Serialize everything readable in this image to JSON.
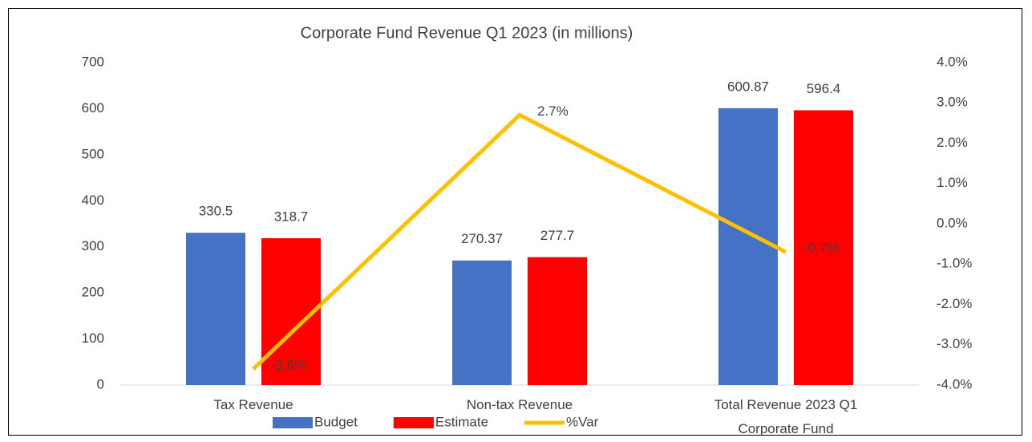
{
  "chart_data": {
    "type": "bar",
    "title": "Corporate Fund Revenue Q1 2023 (in millions)",
    "categories": [
      "Tax Revenue",
      "Non-tax Revenue",
      "Total Revenue 2023 Q1 Corporate Fund"
    ],
    "series": [
      {
        "name": "Budget",
        "color": "#4472c4",
        "values": [
          330.5,
          270.37,
          600.87
        ]
      },
      {
        "name": "Estimate",
        "color": "#ff0000",
        "values": [
          318.7,
          277.7,
          596.4
        ]
      },
      {
        "name": "%Var",
        "color": "#ffc000",
        "type": "line",
        "axis": "y2",
        "values": [
          -3.6,
          2.7,
          -0.7
        ],
        "value_labels": [
          "-3.6%",
          "2.7%",
          "-0.7%"
        ]
      }
    ],
    "ylim": [
      0,
      700
    ],
    "yticks": [
      0,
      100,
      200,
      300,
      400,
      500,
      600,
      700
    ],
    "y2lim": [
      -4,
      4
    ],
    "y2ticks": [
      {
        "value": -4,
        "label": "-4.0%"
      },
      {
        "value": -3,
        "label": "-3.0%"
      },
      {
        "value": -2,
        "label": "-2.0%"
      },
      {
        "value": -1,
        "label": "-1.0%"
      },
      {
        "value": 0,
        "label": "0.0%"
      },
      {
        "value": 1,
        "label": "1.0%"
      },
      {
        "value": 2,
        "label": "2.0%"
      },
      {
        "value": 3,
        "label": "3.0%"
      },
      {
        "value": 4,
        "label": "4.0%"
      }
    ],
    "grid": false,
    "legend": "bottom"
  }
}
